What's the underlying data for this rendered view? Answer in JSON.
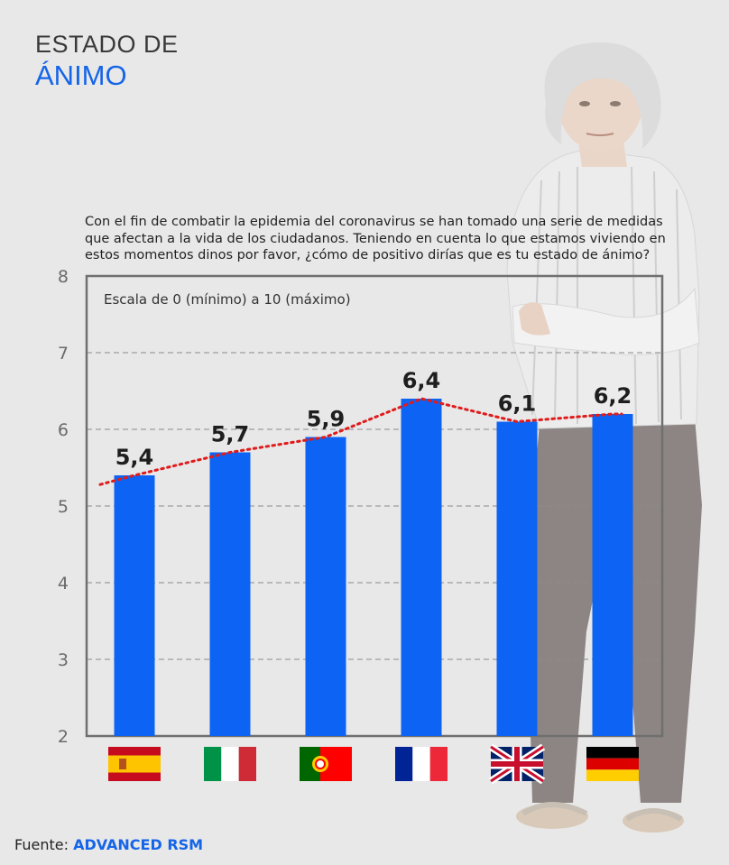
{
  "title_line1": "ESTADO DE",
  "title_line2": "ÁNIMO",
  "question": "Con el fin de combatir la epidemia del coronavirus se han tomado una serie de medidas que afectan a la vida de los ciudadanos. Teniendo en cuenta lo que estamos viviendo en estos momentos dinos por favor, ¿cómo de positivo dirías que es tu estado de ánimo?",
  "scale_note": "Escala de 0 (mínimo) a 10 (máximo)",
  "footer_prefix": "Fuente:",
  "footer_source": "ADVANCED RSM",
  "colors": {
    "bar": "#0d63f3",
    "trend": "#e01b1b",
    "title_accent": "#1565e8"
  },
  "chart_data": {
    "type": "bar",
    "categories": [
      "spain-flag-icon",
      "italy-flag-icon",
      "portugal-flag-icon",
      "france-flag-icon",
      "uk-flag-icon",
      "germany-flag-icon"
    ],
    "values": [
      5.4,
      5.7,
      5.9,
      6.4,
      6.1,
      6.2
    ],
    "value_labels": [
      "5,4",
      "5,7",
      "5,9",
      "6,4",
      "6,1",
      "6,2"
    ],
    "yticks": [
      "2",
      "3",
      "4",
      "5",
      "6",
      "7",
      "8"
    ],
    "ylim": [
      2,
      8
    ],
    "grid": "dashed",
    "trendline": "dotted"
  }
}
